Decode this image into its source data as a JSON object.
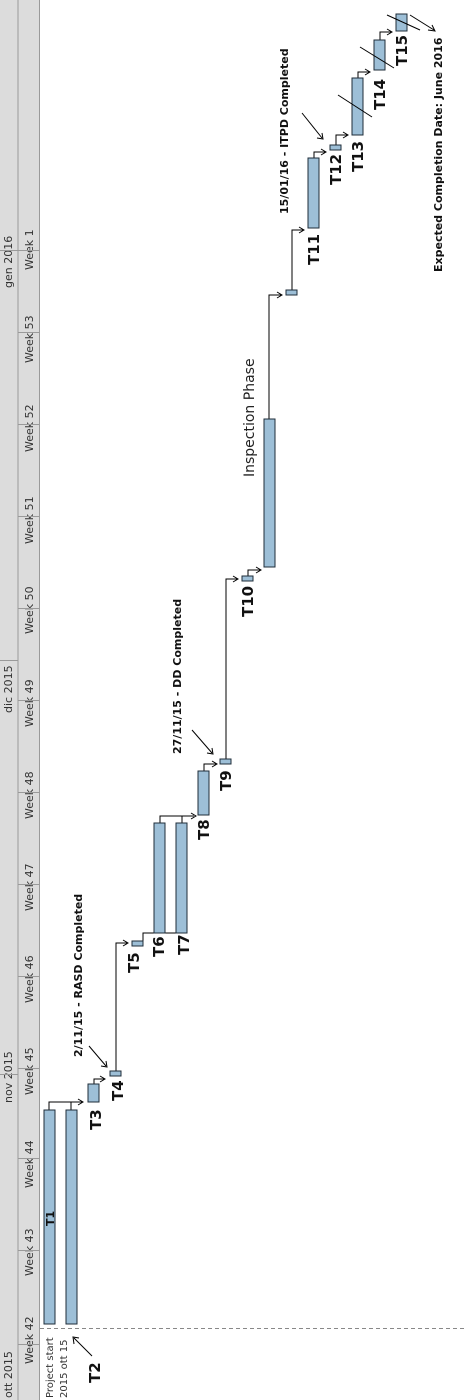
{
  "chart_data": {
    "type": "gantt",
    "months": [
      "ott 2015",
      "nov 2015",
      "dic 2015",
      "gen 2016"
    ],
    "weeks": [
      "Week 42",
      "Week 43",
      "Week 44",
      "Week 45",
      "Week 46",
      "Week 47",
      "Week 48",
      "Week 49",
      "Week 50",
      "Week 51",
      "Week 52",
      "Week 53",
      "Week 1"
    ],
    "project_start": "Project start\n2015 ott 15",
    "tasks": [
      {
        "name": "T1",
        "start": "2015-10-15",
        "end": "2015-10-30"
      },
      {
        "name": "T2",
        "start": "2015-10-15",
        "end": "2015-10-30"
      },
      {
        "name": "T3",
        "start": "2015-10-31",
        "end": "2015-11-01"
      },
      {
        "name": "T4",
        "start": "2015-11-02",
        "end": "2015-11-02"
      },
      {
        "name": "T5",
        "start": "2015-11-12",
        "end": "2015-11-12"
      },
      {
        "name": "T6",
        "start": "2015-11-13",
        "end": "2015-11-18"
      },
      {
        "name": "T7",
        "start": "2015-11-13",
        "end": "2015-11-18"
      },
      {
        "name": "T8",
        "start": "2015-11-19",
        "end": "2015-11-21"
      },
      {
        "name": "T9",
        "start": "2015-11-27",
        "end": "2015-11-27"
      },
      {
        "name": "T10",
        "start": "2015-12-12",
        "end": "2015-12-12"
      },
      {
        "name": "Inspection Phase",
        "start": "2015-12-13",
        "end": "2015-12-23"
      },
      {
        "name": "",
        "start": "2016-01-01",
        "end": "2016-01-01"
      },
      {
        "name": "T11",
        "start": "2016-01-06",
        "end": "2016-01-10"
      },
      {
        "name": "T12",
        "start": "2016-01-15",
        "end": "2016-01-15"
      },
      {
        "name": "T13",
        "start": "2016-01-17",
        "end": "2016-01-20"
      },
      {
        "name": "T14",
        "start": "2016-01-21",
        "end": "2016-01-22"
      },
      {
        "name": "T15",
        "start": "2016-01-23",
        "end": "2016-01-24"
      }
    ],
    "milestones": [
      {
        "text": "2/11/15 - RASD Completed",
        "task": "T4"
      },
      {
        "text": "27/11/15 - DD Completed",
        "task": "T9"
      },
      {
        "text": "15/01/16 - ITPD Completed",
        "task": "T12"
      }
    ],
    "footer": "Expected Completion Date: June 2016",
    "colors": {
      "bar": "#9dbfd7",
      "bar_border": "#1f2d3a",
      "header_bg": "#d9d9d9",
      "grid": "#a9a9a9"
    }
  }
}
